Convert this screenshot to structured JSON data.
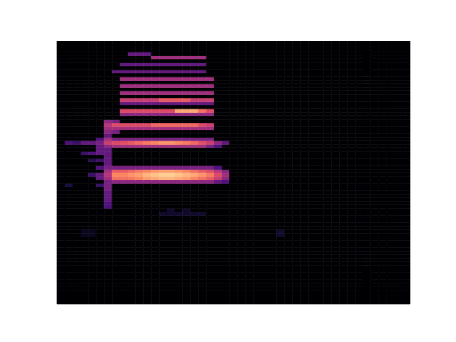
{
  "chart_data": {
    "type": "heatmap",
    "tick_labels": false,
    "grid": false,
    "xlim": [
      0,
      45
    ],
    "ylim": [
      0,
      74
    ],
    "zlim": [
      0,
      1
    ],
    "cells": [
      [
        13,
        25,
        0.08
      ],
      [
        14,
        25,
        0.08
      ],
      [
        15,
        25,
        0.08
      ],
      [
        16,
        25,
        0.08
      ],
      [
        17,
        25,
        0.08
      ],
      [
        18,
        25,
        0.08
      ],
      [
        14,
        26,
        0.08
      ],
      [
        16,
        26,
        0.08
      ],
      [
        6,
        27,
        0.25
      ],
      [
        6,
        28,
        0.25
      ],
      [
        6,
        29,
        0.3
      ],
      [
        6,
        30,
        0.3
      ],
      [
        6,
        31,
        0.3
      ],
      [
        6,
        32,
        0.35
      ],
      [
        6,
        33,
        0.35
      ],
      [
        1,
        33,
        0.12
      ],
      [
        5,
        33,
        0.2
      ],
      [
        6,
        34,
        0.35
      ],
      [
        7,
        34,
        0.4
      ],
      [
        8,
        34,
        0.4
      ],
      [
        9,
        34,
        0.4
      ],
      [
        10,
        34,
        0.4
      ],
      [
        11,
        34,
        0.4
      ],
      [
        12,
        34,
        0.4
      ],
      [
        13,
        34,
        0.4
      ],
      [
        14,
        34,
        0.4
      ],
      [
        15,
        34,
        0.4
      ],
      [
        16,
        34,
        0.4
      ],
      [
        17,
        34,
        0.4
      ],
      [
        18,
        34,
        0.4
      ],
      [
        19,
        34,
        0.4
      ],
      [
        20,
        34,
        0.3
      ],
      [
        21,
        34,
        0.25
      ],
      [
        5,
        35,
        0.3
      ],
      [
        6,
        35,
        0.45
      ],
      [
        7,
        35,
        0.7
      ],
      [
        8,
        35,
        0.7
      ],
      [
        9,
        35,
        0.72
      ],
      [
        10,
        35,
        0.75
      ],
      [
        11,
        35,
        0.8
      ],
      [
        12,
        35,
        0.82
      ],
      [
        13,
        35,
        0.85
      ],
      [
        14,
        35,
        0.85
      ],
      [
        15,
        35,
        0.82
      ],
      [
        16,
        35,
        0.8
      ],
      [
        17,
        35,
        0.75
      ],
      [
        18,
        35,
        0.7
      ],
      [
        19,
        35,
        0.65
      ],
      [
        20,
        35,
        0.55
      ],
      [
        21,
        35,
        0.4
      ],
      [
        4,
        36,
        0.2
      ],
      [
        5,
        36,
        0.3
      ],
      [
        6,
        36,
        0.5
      ],
      [
        7,
        36,
        0.75
      ],
      [
        8,
        36,
        0.75
      ],
      [
        9,
        36,
        0.78
      ],
      [
        10,
        36,
        0.8
      ],
      [
        11,
        36,
        0.85
      ],
      [
        12,
        36,
        0.88
      ],
      [
        13,
        36,
        0.9
      ],
      [
        14,
        36,
        0.9
      ],
      [
        15,
        36,
        0.88
      ],
      [
        16,
        36,
        0.85
      ],
      [
        17,
        36,
        0.82
      ],
      [
        18,
        36,
        0.78
      ],
      [
        19,
        36,
        0.72
      ],
      [
        20,
        36,
        0.6
      ],
      [
        21,
        36,
        0.45
      ],
      [
        6,
        37,
        0.45
      ],
      [
        7,
        37,
        0.65
      ],
      [
        8,
        37,
        0.65
      ],
      [
        9,
        37,
        0.68
      ],
      [
        10,
        37,
        0.72
      ],
      [
        11,
        37,
        0.75
      ],
      [
        12,
        37,
        0.78
      ],
      [
        13,
        37,
        0.8
      ],
      [
        14,
        37,
        0.8
      ],
      [
        15,
        37,
        0.78
      ],
      [
        16,
        37,
        0.75
      ],
      [
        17,
        37,
        0.7
      ],
      [
        18,
        37,
        0.65
      ],
      [
        19,
        37,
        0.6
      ],
      [
        20,
        37,
        0.5
      ],
      [
        21,
        37,
        0.38
      ],
      [
        5,
        38,
        0.25
      ],
      [
        6,
        38,
        0.35
      ],
      [
        7,
        38,
        0.35
      ],
      [
        8,
        38,
        0.35
      ],
      [
        9,
        38,
        0.35
      ],
      [
        10,
        38,
        0.35
      ],
      [
        11,
        38,
        0.35
      ],
      [
        12,
        38,
        0.35
      ],
      [
        13,
        38,
        0.35
      ],
      [
        14,
        38,
        0.35
      ],
      [
        15,
        38,
        0.35
      ],
      [
        16,
        38,
        0.35
      ],
      [
        17,
        38,
        0.35
      ],
      [
        18,
        38,
        0.35
      ],
      [
        19,
        38,
        0.35
      ],
      [
        20,
        38,
        0.25
      ],
      [
        6,
        39,
        0.3
      ],
      [
        6,
        40,
        0.3
      ],
      [
        6,
        41,
        0.3
      ],
      [
        6,
        42,
        0.3
      ],
      [
        6,
        43,
        0.3
      ],
      [
        4,
        40,
        0.15
      ],
      [
        5,
        40,
        0.2
      ],
      [
        3,
        42,
        0.2
      ],
      [
        4,
        42,
        0.25
      ],
      [
        5,
        42,
        0.3
      ],
      [
        5,
        43,
        0.3
      ],
      [
        5,
        44,
        0.3
      ],
      [
        6,
        44,
        0.4
      ],
      [
        7,
        44,
        0.45
      ],
      [
        8,
        44,
        0.45
      ],
      [
        9,
        44,
        0.45
      ],
      [
        10,
        44,
        0.45
      ],
      [
        11,
        44,
        0.45
      ],
      [
        12,
        44,
        0.45
      ],
      [
        13,
        44,
        0.45
      ],
      [
        14,
        44,
        0.45
      ],
      [
        15,
        44,
        0.45
      ],
      [
        16,
        44,
        0.45
      ],
      [
        17,
        44,
        0.45
      ],
      [
        18,
        44,
        0.45
      ],
      [
        19,
        44,
        0.35
      ],
      [
        20,
        44,
        0.25
      ],
      [
        1,
        45,
        0.25
      ],
      [
        2,
        45,
        0.2
      ],
      [
        3,
        45,
        0.3
      ],
      [
        4,
        45,
        0.3
      ],
      [
        5,
        45,
        0.35
      ],
      [
        6,
        45,
        0.55
      ],
      [
        7,
        45,
        0.6
      ],
      [
        8,
        45,
        0.62
      ],
      [
        9,
        45,
        0.65
      ],
      [
        10,
        45,
        0.68
      ],
      [
        11,
        45,
        0.72
      ],
      [
        12,
        45,
        0.75
      ],
      [
        13,
        45,
        0.78
      ],
      [
        14,
        45,
        0.78
      ],
      [
        15,
        45,
        0.75
      ],
      [
        16,
        45,
        0.72
      ],
      [
        17,
        45,
        0.68
      ],
      [
        18,
        45,
        0.62
      ],
      [
        19,
        45,
        0.55
      ],
      [
        20,
        45,
        0.4
      ],
      [
        21,
        45,
        0.3
      ],
      [
        5,
        46,
        0.25
      ],
      [
        6,
        46,
        0.45
      ],
      [
        7,
        46,
        0.35
      ],
      [
        8,
        46,
        0.35
      ],
      [
        9,
        46,
        0.35
      ],
      [
        10,
        46,
        0.35
      ],
      [
        11,
        46,
        0.35
      ],
      [
        12,
        46,
        0.35
      ],
      [
        13,
        46,
        0.35
      ],
      [
        14,
        46,
        0.35
      ],
      [
        15,
        46,
        0.35
      ],
      [
        16,
        46,
        0.35
      ],
      [
        17,
        46,
        0.35
      ],
      [
        18,
        46,
        0.35
      ],
      [
        19,
        46,
        0.35
      ],
      [
        6,
        47,
        0.3
      ],
      [
        6,
        48,
        0.4
      ],
      [
        7,
        48,
        0.35
      ],
      [
        6,
        49,
        0.45
      ],
      [
        7,
        49,
        0.45
      ],
      [
        8,
        49,
        0.45
      ],
      [
        9,
        49,
        0.45
      ],
      [
        10,
        49,
        0.45
      ],
      [
        11,
        49,
        0.45
      ],
      [
        12,
        49,
        0.45
      ],
      [
        13,
        49,
        0.45
      ],
      [
        14,
        49,
        0.45
      ],
      [
        15,
        49,
        0.45
      ],
      [
        16,
        49,
        0.45
      ],
      [
        17,
        49,
        0.45
      ],
      [
        18,
        49,
        0.45
      ],
      [
        19,
        49,
        0.45
      ],
      [
        6,
        50,
        0.5
      ],
      [
        7,
        50,
        0.6
      ],
      [
        8,
        50,
        0.6
      ],
      [
        9,
        50,
        0.6
      ],
      [
        10,
        50,
        0.6
      ],
      [
        11,
        50,
        0.6
      ],
      [
        12,
        50,
        0.68
      ],
      [
        13,
        50,
        0.68
      ],
      [
        14,
        50,
        0.68
      ],
      [
        15,
        50,
        0.68
      ],
      [
        16,
        50,
        0.68
      ],
      [
        17,
        50,
        0.68
      ],
      [
        18,
        50,
        0.6
      ],
      [
        19,
        50,
        0.55
      ],
      [
        6,
        51,
        0.4
      ],
      [
        7,
        51,
        0.35
      ],
      [
        8,
        53,
        0.4
      ],
      [
        9,
        53,
        0.4
      ],
      [
        10,
        53,
        0.4
      ],
      [
        11,
        53,
        0.4
      ],
      [
        12,
        53,
        0.4
      ],
      [
        13,
        53,
        0.4
      ],
      [
        14,
        53,
        0.4
      ],
      [
        15,
        53,
        0.4
      ],
      [
        16,
        53,
        0.4
      ],
      [
        17,
        53,
        0.4
      ],
      [
        18,
        53,
        0.4
      ],
      [
        19,
        53,
        0.4
      ],
      [
        8,
        54,
        0.6
      ],
      [
        9,
        54,
        0.6
      ],
      [
        10,
        54,
        0.6
      ],
      [
        11,
        54,
        0.6
      ],
      [
        12,
        54,
        0.6
      ],
      [
        13,
        54,
        0.6
      ],
      [
        14,
        54,
        0.6
      ],
      [
        15,
        54,
        0.82
      ],
      [
        16,
        54,
        0.82
      ],
      [
        17,
        54,
        0.82
      ],
      [
        18,
        54,
        0.7
      ],
      [
        19,
        54,
        0.6
      ],
      [
        8,
        56,
        0.3
      ],
      [
        9,
        56,
        0.3
      ],
      [
        10,
        56,
        0.3
      ],
      [
        11,
        56,
        0.3
      ],
      [
        12,
        56,
        0.3
      ],
      [
        13,
        56,
        0.3
      ],
      [
        14,
        56,
        0.3
      ],
      [
        15,
        56,
        0.3
      ],
      [
        16,
        56,
        0.3
      ],
      [
        17,
        56,
        0.3
      ],
      [
        18,
        56,
        0.3
      ],
      [
        19,
        56,
        0.3
      ],
      [
        8,
        57,
        0.55
      ],
      [
        9,
        57,
        0.55
      ],
      [
        10,
        57,
        0.55
      ],
      [
        11,
        57,
        0.55
      ],
      [
        12,
        57,
        0.55
      ],
      [
        13,
        57,
        0.65
      ],
      [
        14,
        57,
        0.65
      ],
      [
        15,
        57,
        0.65
      ],
      [
        16,
        57,
        0.65
      ],
      [
        17,
        57,
        0.55
      ],
      [
        18,
        57,
        0.55
      ],
      [
        19,
        57,
        0.55
      ],
      [
        8,
        59,
        0.45
      ],
      [
        9,
        59,
        0.45
      ],
      [
        10,
        59,
        0.45
      ],
      [
        11,
        59,
        0.45
      ],
      [
        12,
        59,
        0.45
      ],
      [
        13,
        59,
        0.45
      ],
      [
        14,
        59,
        0.45
      ],
      [
        15,
        59,
        0.45
      ],
      [
        16,
        59,
        0.45
      ],
      [
        17,
        59,
        0.45
      ],
      [
        18,
        59,
        0.45
      ],
      [
        19,
        59,
        0.45
      ],
      [
        8,
        61,
        0.45
      ],
      [
        9,
        61,
        0.45
      ],
      [
        10,
        61,
        0.45
      ],
      [
        11,
        61,
        0.45
      ],
      [
        12,
        61,
        0.45
      ],
      [
        13,
        61,
        0.45
      ],
      [
        14,
        61,
        0.45
      ],
      [
        15,
        61,
        0.45
      ],
      [
        16,
        61,
        0.45
      ],
      [
        17,
        61,
        0.45
      ],
      [
        18,
        61,
        0.45
      ],
      [
        19,
        61,
        0.45
      ],
      [
        8,
        63,
        0.45
      ],
      [
        9,
        63,
        0.45
      ],
      [
        10,
        63,
        0.45
      ],
      [
        11,
        63,
        0.45
      ],
      [
        12,
        63,
        0.45
      ],
      [
        13,
        63,
        0.45
      ],
      [
        14,
        63,
        0.45
      ],
      [
        15,
        63,
        0.45
      ],
      [
        16,
        63,
        0.45
      ],
      [
        17,
        63,
        0.45
      ],
      [
        18,
        63,
        0.45
      ],
      [
        19,
        63,
        0.45
      ],
      [
        7,
        65,
        0.3
      ],
      [
        8,
        65,
        0.3
      ],
      [
        9,
        65,
        0.3
      ],
      [
        10,
        65,
        0.3
      ],
      [
        11,
        65,
        0.3
      ],
      [
        12,
        65,
        0.3
      ],
      [
        13,
        65,
        0.3
      ],
      [
        14,
        65,
        0.3
      ],
      [
        15,
        65,
        0.3
      ],
      [
        16,
        65,
        0.3
      ],
      [
        17,
        65,
        0.3
      ],
      [
        18,
        65,
        0.3
      ],
      [
        8,
        67,
        0.3
      ],
      [
        9,
        67,
        0.3
      ],
      [
        10,
        67,
        0.3
      ],
      [
        11,
        67,
        0.3
      ],
      [
        12,
        67,
        0.3
      ],
      [
        13,
        67,
        0.3
      ],
      [
        14,
        67,
        0.3
      ],
      [
        15,
        67,
        0.3
      ],
      [
        16,
        67,
        0.3
      ],
      [
        17,
        67,
        0.3
      ],
      [
        18,
        67,
        0.3
      ],
      [
        12,
        69,
        0.45
      ],
      [
        13,
        69,
        0.45
      ],
      [
        14,
        69,
        0.45
      ],
      [
        15,
        69,
        0.45
      ],
      [
        16,
        69,
        0.45
      ],
      [
        17,
        69,
        0.45
      ],
      [
        18,
        69,
        0.45
      ],
      [
        9,
        70,
        0.3
      ],
      [
        10,
        70,
        0.3
      ],
      [
        11,
        70,
        0.3
      ],
      [
        3,
        19,
        0.05
      ],
      [
        4,
        19,
        0.05
      ],
      [
        3,
        20,
        0.05
      ],
      [
        4,
        20,
        0.05
      ],
      [
        28,
        19,
        0.08
      ],
      [
        28,
        20,
        0.08
      ]
    ]
  }
}
